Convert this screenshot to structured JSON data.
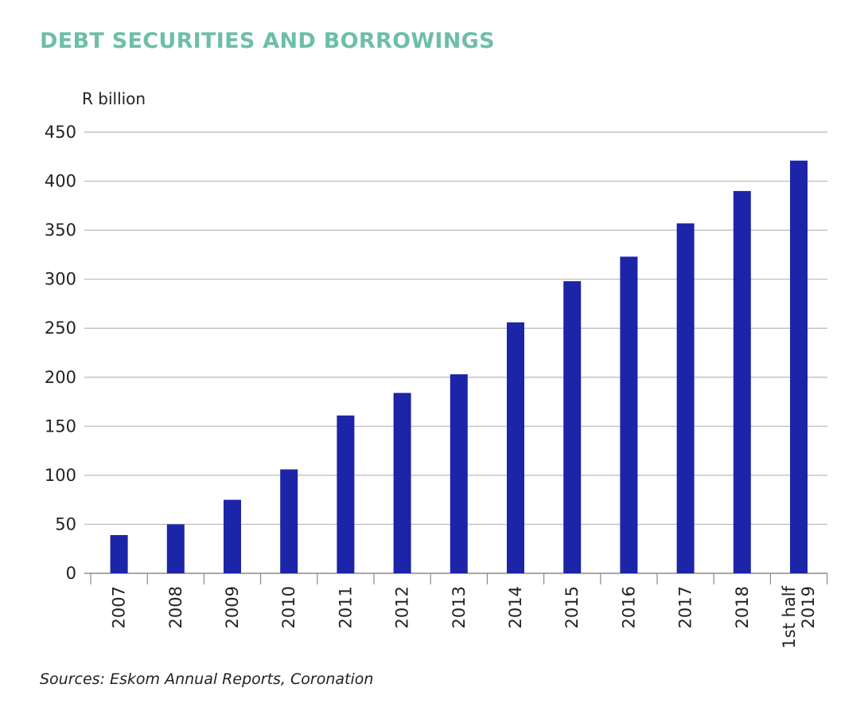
{
  "title": "DEBT SECURITIES AND BORROWINGS",
  "source": "Sources: Eskom Annual Reports, Coronation",
  "colors": {
    "title": "#6dbfa7",
    "bar": "#1c24a8",
    "grid": "#b8b8b8",
    "text": "#222222"
  },
  "chart_data": {
    "type": "bar",
    "ylabel": "R billion",
    "xlabel": "",
    "ylim": [
      0,
      450
    ],
    "yticks": [
      0,
      50,
      100,
      150,
      200,
      250,
      300,
      350,
      400,
      450
    ],
    "grid": true,
    "categories": [
      "2007",
      "2008",
      "2009",
      "2010",
      "2011",
      "2012",
      "2013",
      "2014",
      "2015",
      "2016",
      "2017",
      "2018",
      "1st half 2019"
    ],
    "category_lines": [
      [
        "2007"
      ],
      [
        "2008"
      ],
      [
        "2009"
      ],
      [
        "2010"
      ],
      [
        "2011"
      ],
      [
        "2012"
      ],
      [
        "2013"
      ],
      [
        "2014"
      ],
      [
        "2015"
      ],
      [
        "2016"
      ],
      [
        "2017"
      ],
      [
        "2018"
      ],
      [
        "1st half",
        "2019"
      ]
    ],
    "values": [
      39,
      50,
      75,
      106,
      161,
      184,
      203,
      256,
      298,
      323,
      357,
      390,
      421
    ]
  }
}
